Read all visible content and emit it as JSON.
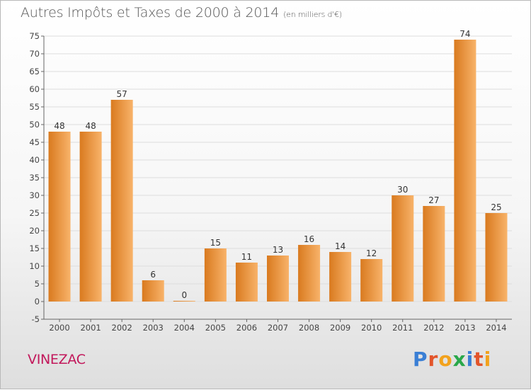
{
  "header": {
    "title": "Autres Impôts et Taxes de 2000 à 2014",
    "unit": "(en milliers d'€)"
  },
  "town": "VINEZAC",
  "logo": {
    "letters": [
      "P",
      "r",
      "o",
      "x",
      "i",
      "t",
      "i"
    ],
    "colors": [
      "#3a7fd5",
      "#e3552b",
      "#f2a21d",
      "#2aa84a",
      "#3a7fd5",
      "#e3552b",
      "#f2a21d"
    ]
  },
  "colors": {
    "bar_light": "#f8b36a",
    "bar_dark": "#d97a1f",
    "grid": "#dddddd",
    "axis_text": "#444444"
  },
  "chart_data": {
    "type": "bar",
    "categories": [
      "2000",
      "2001",
      "2002",
      "2003",
      "2004",
      "2005",
      "2006",
      "2007",
      "2008",
      "2009",
      "2010",
      "2011",
      "2012",
      "2013",
      "2014"
    ],
    "values": [
      48,
      48,
      57,
      6,
      0,
      15,
      11,
      13,
      16,
      14,
      12,
      30,
      27,
      74,
      25
    ],
    "ylim": [
      -5,
      75
    ],
    "yticks": [
      -5,
      0,
      5,
      10,
      15,
      20,
      25,
      30,
      35,
      40,
      45,
      50,
      55,
      60,
      65,
      70,
      75
    ],
    "grid": "horizontal",
    "legend": "none"
  }
}
